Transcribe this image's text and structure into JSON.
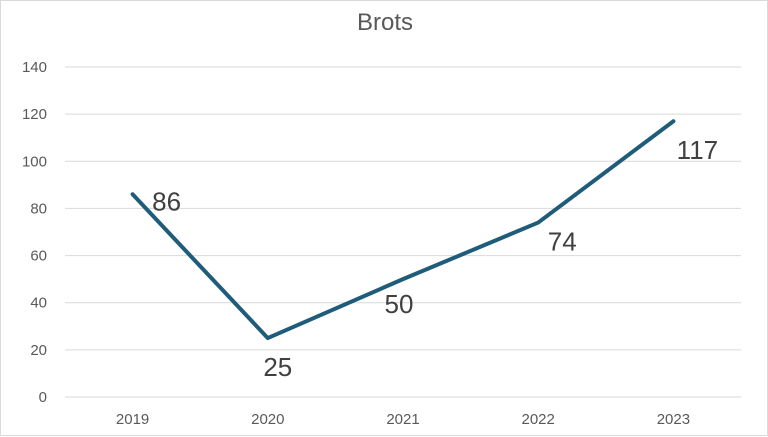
{
  "chart_data": {
    "type": "line",
    "title": "Brots",
    "categories": [
      "2019",
      "2020",
      "2021",
      "2022",
      "2023"
    ],
    "series": [
      {
        "values": [
          86,
          25,
          50,
          74,
          117
        ],
        "color": "#1f5c7a"
      }
    ],
    "data_labels": [
      "86",
      "25",
      "50",
      "74",
      "117"
    ],
    "ylim": [
      0,
      140
    ],
    "yticks": [
      0,
      20,
      40,
      60,
      80,
      100,
      120,
      140
    ],
    "ytick_labels": [
      "0",
      "20",
      "40",
      "60",
      "80",
      "100",
      "120",
      "140"
    ],
    "grid": true,
    "legend": "none"
  }
}
